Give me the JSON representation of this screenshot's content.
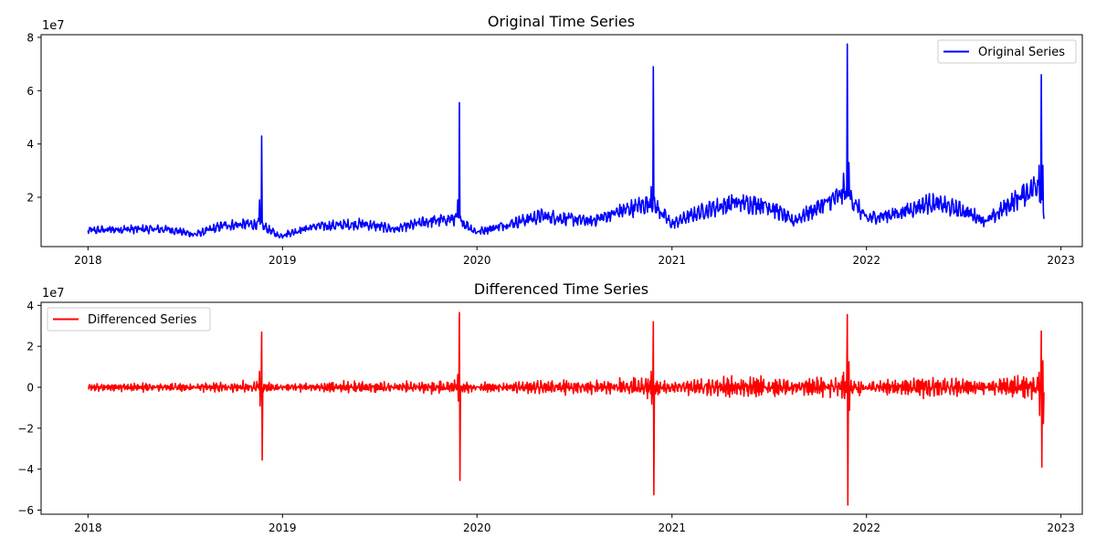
{
  "chart_data": [
    {
      "type": "line",
      "title": "Original Time Series",
      "xlabel": "",
      "ylabel": "",
      "x_range": [
        "2018-01-01",
        "2022-11-30"
      ],
      "xlim": [
        "2017-10-05",
        "2023-02-10"
      ],
      "ylim": [
        1500000,
        81000000
      ],
      "y_ticks": [
        20000000,
        40000000,
        60000000,
        80000000
      ],
      "y_tick_labels": [
        "2",
        "4",
        "6",
        "8"
      ],
      "y_offset_label": "1e7",
      "x_ticks": [
        "2018-01-01",
        "2019-01-01",
        "2020-01-01",
        "2021-01-01",
        "2022-01-01",
        "2023-01-01"
      ],
      "x_tick_labels": [
        "2018",
        "2019",
        "2020",
        "2021",
        "2022",
        "2023"
      ],
      "legend_placement": "top-right",
      "grid": false,
      "series": [
        {
          "name": "Original Series",
          "color": "#0000ff",
          "base_keypoints": [
            [
              "2018-01-01",
              7500000
            ],
            [
              "2018-03-01",
              8000000
            ],
            [
              "2018-06-01",
              8000000
            ],
            [
              "2018-07-20",
              6000000
            ],
            [
              "2018-09-15",
              9500000
            ],
            [
              "2018-11-20",
              10000000
            ],
            [
              "2018-12-25",
              5500000
            ],
            [
              "2019-03-01",
              9000000
            ],
            [
              "2019-06-01",
              10000000
            ],
            [
              "2019-08-01",
              8000000
            ],
            [
              "2019-10-01",
              11000000
            ],
            [
              "2019-11-25",
              12000000
            ],
            [
              "2019-12-31",
              7000000
            ],
            [
              "2020-03-01",
              10000000
            ],
            [
              "2020-05-01",
              13000000
            ],
            [
              "2020-08-01",
              11000000
            ],
            [
              "2020-10-01",
              15000000
            ],
            [
              "2020-11-25",
              18000000
            ],
            [
              "2020-12-31",
              10000000
            ],
            [
              "2021-03-01",
              15000000
            ],
            [
              "2021-05-01",
              18000000
            ],
            [
              "2021-07-01",
              17000000
            ],
            [
              "2021-08-15",
              11000000
            ],
            [
              "2021-10-01",
              16000000
            ],
            [
              "2021-11-25",
              22000000
            ],
            [
              "2021-12-31",
              12000000
            ],
            [
              "2022-03-01",
              14000000
            ],
            [
              "2022-05-01",
              18000000
            ],
            [
              "2022-07-01",
              15000000
            ],
            [
              "2022-08-15",
              11000000
            ],
            [
              "2022-10-01",
              18000000
            ],
            [
              "2022-11-20",
              25000000
            ],
            [
              "2022-11-30",
              15000000
            ]
          ],
          "noise_amplitude": 1800000,
          "spikes": [
            [
              "2018-11-23",
              43000000
            ],
            [
              "2018-11-19",
              19000000
            ],
            [
              "2019-11-29",
              55500000
            ],
            [
              "2019-11-26",
              19000000
            ],
            [
              "2020-11-27",
              69000000
            ],
            [
              "2020-11-23",
              24000000
            ],
            [
              "2021-11-26",
              77500000
            ],
            [
              "2021-11-29",
              33000000
            ],
            [
              "2021-11-19",
              29000000
            ],
            [
              "2022-11-25",
              66000000
            ],
            [
              "2022-11-21",
              32000000
            ],
            [
              "2022-11-28",
              32000000
            ]
          ]
        }
      ]
    },
    {
      "type": "line",
      "title": "Differenced Time Series",
      "xlabel": "",
      "ylabel": "",
      "x_range": [
        "2018-01-02",
        "2022-11-30"
      ],
      "xlim": [
        "2017-10-05",
        "2023-02-10"
      ],
      "ylim": [
        -62000000,
        41500000
      ],
      "y_ticks": [
        -60000000,
        -40000000,
        -20000000,
        0,
        20000000,
        40000000
      ],
      "y_tick_labels": [
        "−6",
        "−4",
        "−2",
        "0",
        "2",
        "4"
      ],
      "y_offset_label": "1e7",
      "x_ticks": [
        "2018-01-01",
        "2019-01-01",
        "2020-01-01",
        "2021-01-01",
        "2022-01-01",
        "2023-01-01"
      ],
      "x_tick_labels": [
        "2018",
        "2019",
        "2020",
        "2021",
        "2022",
        "2023"
      ],
      "legend_placement": "top-left",
      "grid": false,
      "series": [
        {
          "name": "Differenced Series",
          "color": "#ff0000",
          "derived_from": "Original Series (first difference)",
          "extremes": [
            [
              "2018-11-23",
              27000000
            ],
            [
              "2018-11-24",
              -35500000
            ],
            [
              "2019-11-29",
              36500000
            ],
            [
              "2019-11-30",
              -45500000
            ],
            [
              "2020-11-27",
              32000000
            ],
            [
              "2020-11-28",
              -52500000
            ],
            [
              "2021-11-26",
              35500000
            ],
            [
              "2021-11-27",
              -57500000
            ],
            [
              "2022-11-25",
              27500000
            ],
            [
              "2022-11-26",
              -39000000
            ]
          ]
        }
      ]
    }
  ]
}
